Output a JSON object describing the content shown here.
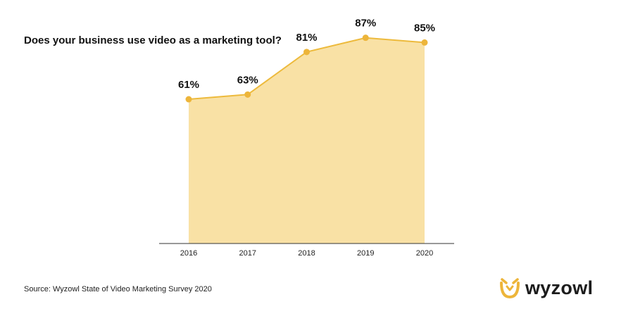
{
  "chart_data": {
    "type": "area",
    "title": "Does your business use video as a marketing tool?",
    "categories": [
      "2016",
      "2017",
      "2018",
      "2019",
      "2020"
    ],
    "values": [
      61,
      63,
      81,
      87,
      85
    ],
    "data_labels": [
      "61%",
      "63%",
      "81%",
      "87%",
      "85%"
    ],
    "xlabel": "",
    "ylabel": "",
    "ylim": [
      0,
      100
    ],
    "grid": false,
    "legend": "none"
  },
  "source": "Source: Wyzowl State of Video Marketing Survey 2020",
  "logo": {
    "text": "wyzowl",
    "icon": "owl-icon"
  },
  "colors": {
    "line": "#EDBA3C",
    "fill": "#F9E1A5",
    "marker": "#EDB53A",
    "axis": "#333333",
    "text": "#111111"
  }
}
